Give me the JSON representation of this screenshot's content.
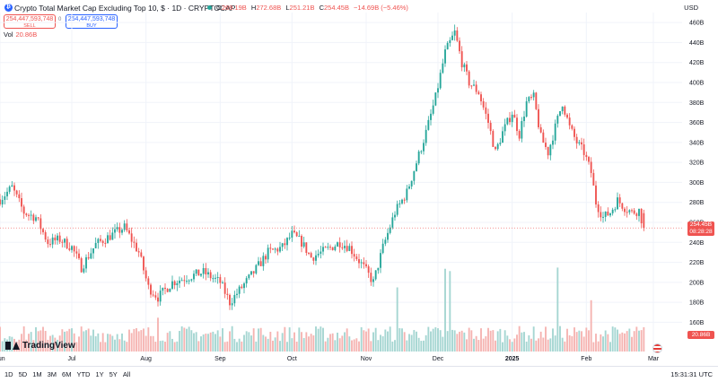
{
  "header": {
    "symbol_icon": "bitcoin-coin-icon",
    "symbol_glyph": "₿",
    "title": "Crypto Total Market Cap Excluding Top 10, $ · 1D · CRYPTOCAP",
    "ohlc": {
      "o_key": "O",
      "o_val": "269.19B",
      "h_key": "H",
      "h_val": "272.68B",
      "l_key": "L",
      "l_val": "251.21B",
      "c_key": "C",
      "c_val": "254.45B",
      "change": "−14.69B (−5.46%)"
    },
    "currency": "USD"
  },
  "trade": {
    "sell_value": "254,447,593,748",
    "sell_label": "SELL",
    "buy_value": "254,447,593,748",
    "buy_label": "BUY",
    "spread": "0"
  },
  "volume": {
    "label": "Vol",
    "value": "20.86B"
  },
  "price_tag": {
    "price": "254.45B",
    "countdown": "08:28:28"
  },
  "volume_tag": "20.86B",
  "logo": "TradingView",
  "bottom": {
    "ranges": [
      "1D",
      "5D",
      "1M",
      "3M",
      "6M",
      "YTD",
      "1Y",
      "5Y",
      "All"
    ],
    "clock": "15:31:31 UTC"
  },
  "colors": {
    "up": "#26a69a",
    "down": "#ef5350",
    "grid": "#f0f3fa",
    "accent": "#2962ff"
  },
  "chart_data": {
    "type": "candlestick",
    "title": "Crypto Total Market Cap Excluding Top 10, $ · 1D · CRYPTOCAP",
    "ylabel": "USD (billions)",
    "ylim": [
      120,
      470
    ],
    "y_ticks": [
      {
        "value": 160,
        "label": "160B"
      },
      {
        "value": 180,
        "label": "180B"
      },
      {
        "value": 200,
        "label": "200B"
      },
      {
        "value": 220,
        "label": "220B"
      },
      {
        "value": 240,
        "label": "240B"
      },
      {
        "value": 260,
        "label": "260B"
      },
      {
        "value": 280,
        "label": "280B"
      },
      {
        "value": 300,
        "label": "300B"
      },
      {
        "value": 320,
        "label": "320B"
      },
      {
        "value": 340,
        "label": "340B"
      },
      {
        "value": 360,
        "label": "360B"
      },
      {
        "value": 380,
        "label": "380B"
      },
      {
        "value": 400,
        "label": "400B"
      },
      {
        "value": 420,
        "label": "420B"
      },
      {
        "value": 440,
        "label": "440B"
      },
      {
        "value": 460,
        "label": "460B"
      }
    ],
    "x_ticks": [
      {
        "day": 0,
        "label": "Jun"
      },
      {
        "day": 30,
        "label": "Jul"
      },
      {
        "day": 61,
        "label": "Aug"
      },
      {
        "day": 92,
        "label": "Sep"
      },
      {
        "day": 122,
        "label": "Oct"
      },
      {
        "day": 153,
        "label": "Nov"
      },
      {
        "day": 183,
        "label": "Dec"
      },
      {
        "day": 214,
        "label": "2025"
      },
      {
        "day": 245,
        "label": "Feb"
      },
      {
        "day": 273,
        "label": "Mar"
      }
    ],
    "x_range_days": [
      0,
      285
    ],
    "series_name": "Crypto Total Market Cap Excluding Top 10",
    "close_anchors": [
      [
        0,
        283
      ],
      [
        5,
        295
      ],
      [
        10,
        270
      ],
      [
        15,
        265
      ],
      [
        20,
        240
      ],
      [
        25,
        243
      ],
      [
        30,
        235
      ],
      [
        34,
        215
      ],
      [
        40,
        238
      ],
      [
        45,
        245
      ],
      [
        52,
        255
      ],
      [
        58,
        230
      ],
      [
        62,
        195
      ],
      [
        66,
        185
      ],
      [
        72,
        200
      ],
      [
        78,
        205
      ],
      [
        85,
        210
      ],
      [
        92,
        200
      ],
      [
        96,
        180
      ],
      [
        100,
        192
      ],
      [
        106,
        210
      ],
      [
        112,
        230
      ],
      [
        118,
        235
      ],
      [
        122,
        248
      ],
      [
        126,
        240
      ],
      [
        130,
        225
      ],
      [
        136,
        232
      ],
      [
        142,
        240
      ],
      [
        146,
        235
      ],
      [
        152,
        215
      ],
      [
        156,
        200
      ],
      [
        160,
        235
      ],
      [
        165,
        270
      ],
      [
        170,
        290
      ],
      [
        174,
        320
      ],
      [
        178,
        350
      ],
      [
        182,
        385
      ],
      [
        186,
        430
      ],
      [
        190,
        450
      ],
      [
        193,
        420
      ],
      [
        196,
        400
      ],
      [
        200,
        390
      ],
      [
        204,
        360
      ],
      [
        207,
        330
      ],
      [
        210,
        350
      ],
      [
        214,
        370
      ],
      [
        217,
        348
      ],
      [
        220,
        380
      ],
      [
        223,
        385
      ],
      [
        226,
        345
      ],
      [
        229,
        330
      ],
      [
        232,
        355
      ],
      [
        235,
        380
      ],
      [
        238,
        355
      ],
      [
        241,
        340
      ],
      [
        244,
        330
      ],
      [
        247,
        310
      ],
      [
        249,
        280
      ],
      [
        252,
        265
      ],
      [
        255,
        270
      ],
      [
        258,
        282
      ],
      [
        261,
        275
      ],
      [
        264,
        270
      ],
      [
        267,
        272
      ],
      [
        269,
        254.45
      ]
    ],
    "volume": {
      "unit": "B",
      "last": 20.86,
      "peaks": [
        {
          "day": 66,
          "value": 29
        },
        {
          "day": 166,
          "value": 55
        },
        {
          "day": 186,
          "value": 71
        },
        {
          "day": 188,
          "value": 69
        },
        {
          "day": 233,
          "value": 72
        },
        {
          "day": 247,
          "value": 44
        }
      ],
      "typical_range": [
        8,
        22
      ]
    },
    "last_price": 254.45,
    "last_price_label": "254.45B"
  }
}
